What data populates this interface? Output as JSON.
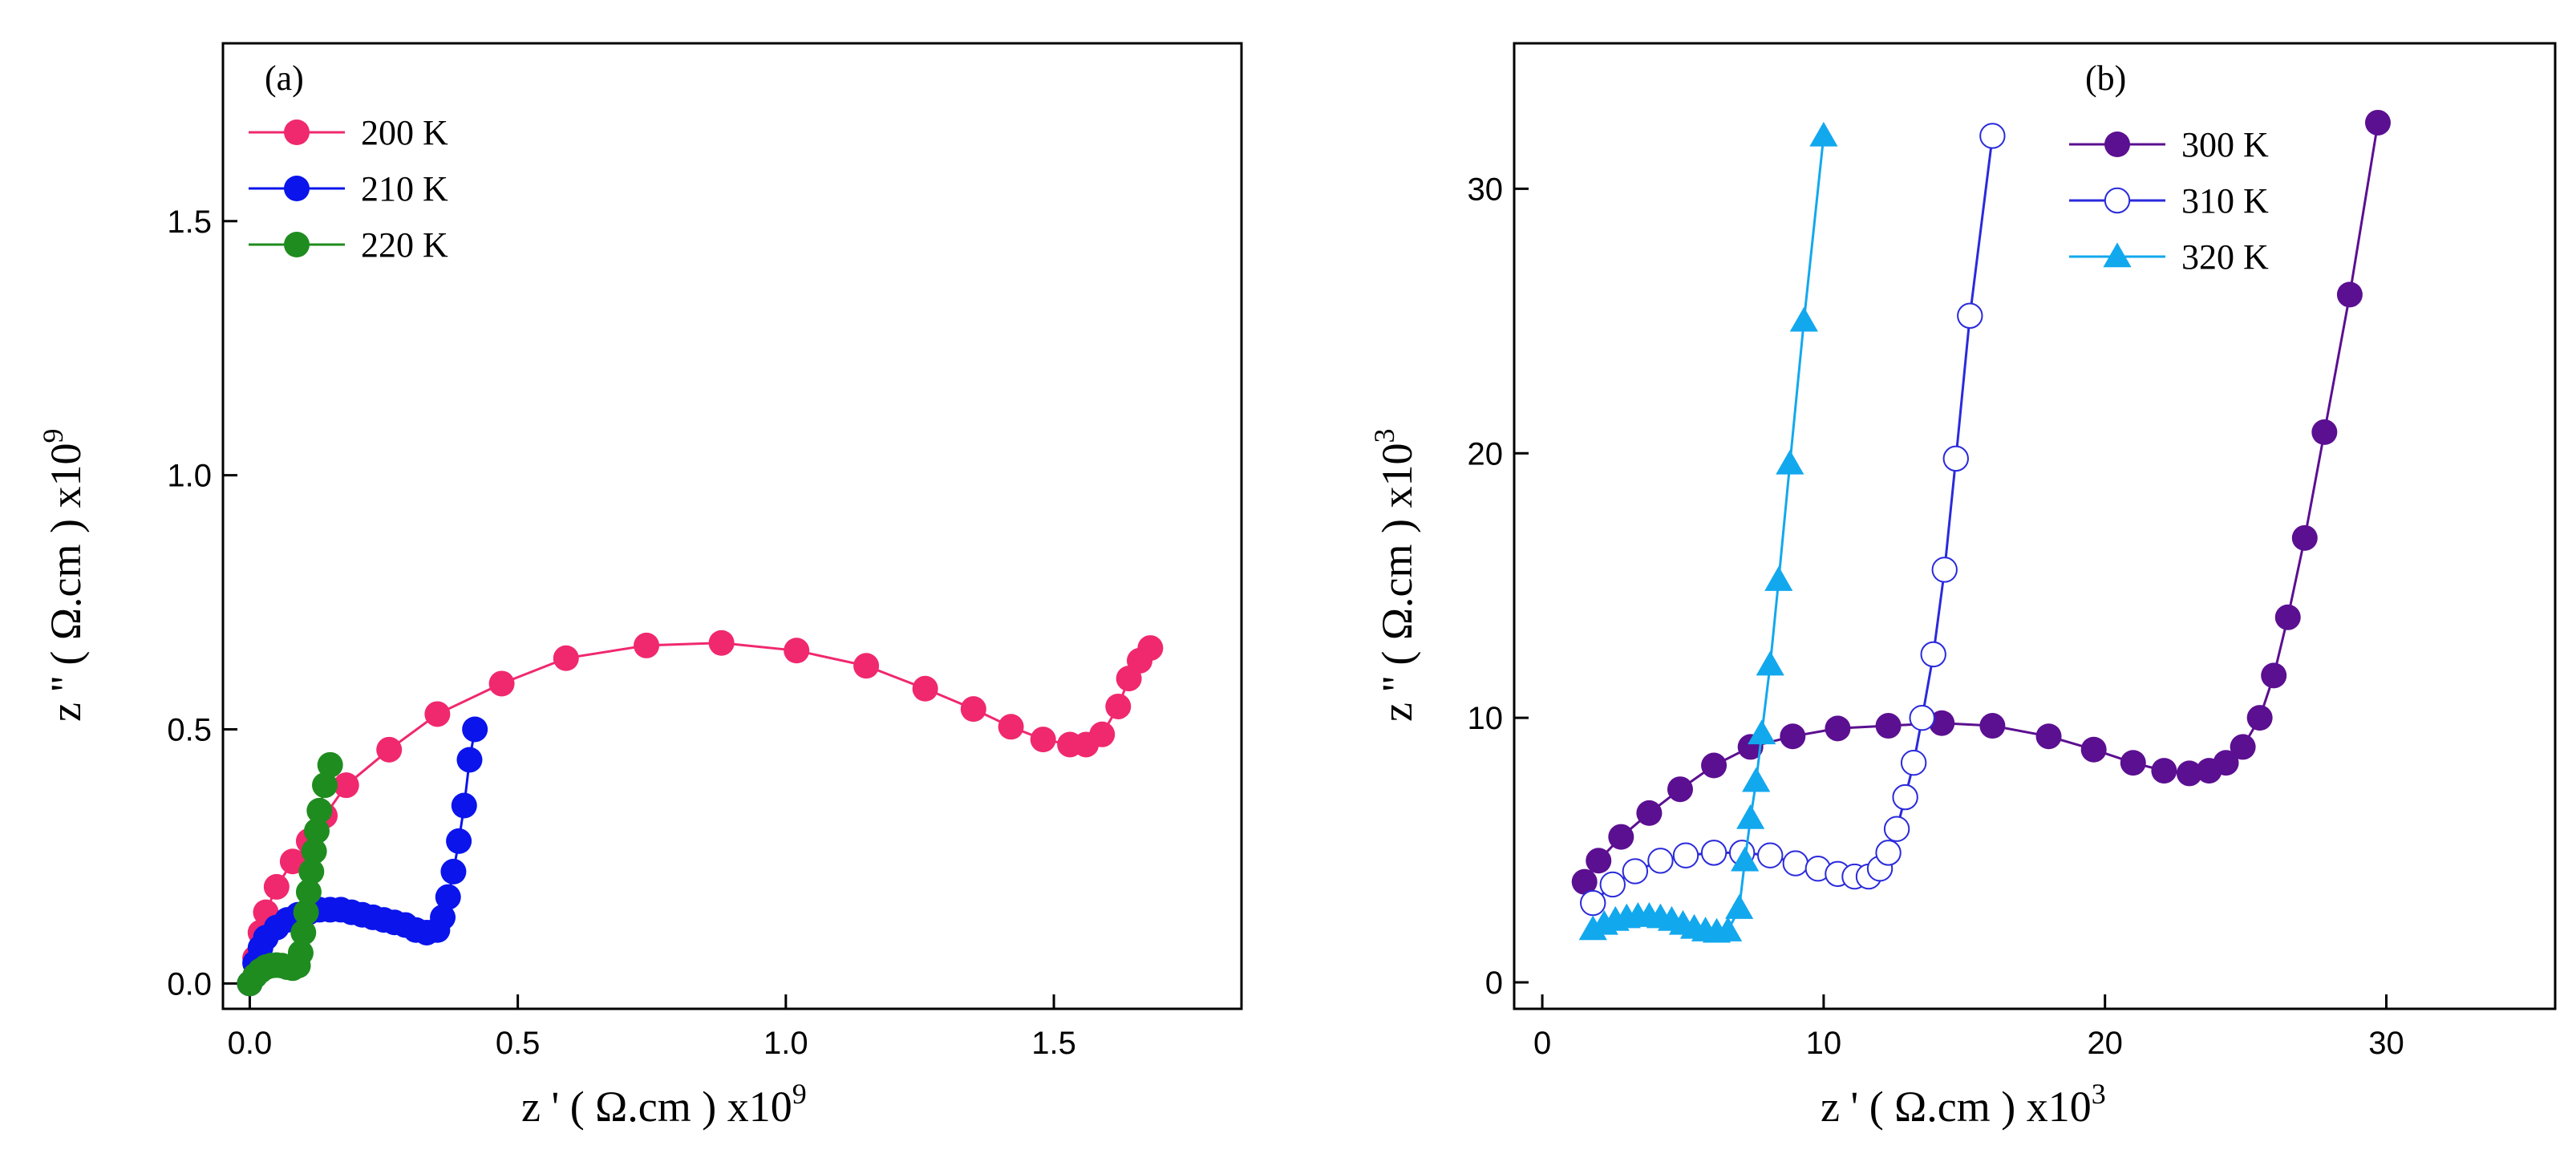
{
  "chart_data": [
    {
      "type": "scatter",
      "panel_label": "(a)",
      "xlabel_main": "z '  ( Ω.cm ) x10",
      "xlabel_exp": "9",
      "ylabel_main": "z ''  ( Ω.cm ) x10",
      "ylabel_exp": "9",
      "xlim": [
        -0.05,
        1.85
      ],
      "ylim": [
        -0.05,
        1.85
      ],
      "xticks": [
        0.0,
        0.5,
        1.0,
        1.5
      ],
      "xtick_labels": [
        "0.0",
        "0.5",
        "1.0",
        "1.5"
      ],
      "yticks": [
        0.0,
        0.5,
        1.0,
        1.5
      ],
      "ytick_labels": [
        "0.0",
        "0.5",
        "1.0",
        "1.5"
      ],
      "legend_position": "top-left",
      "series": [
        {
          "name": "200 K",
          "color": "#F0286E",
          "marker": "filled-circle",
          "x": [
            0.0,
            0.01,
            0.02,
            0.03,
            0.05,
            0.08,
            0.11,
            0.14,
            0.18,
            0.26,
            0.35,
            0.47,
            0.59,
            0.74,
            0.88,
            1.02,
            1.15,
            1.26,
            1.35,
            1.42,
            1.48,
            1.53,
            1.56,
            1.59,
            1.62,
            1.64,
            1.66,
            1.68
          ],
          "y": [
            0.0,
            0.05,
            0.1,
            0.14,
            0.19,
            0.24,
            0.28,
            0.33,
            0.39,
            0.46,
            0.53,
            0.59,
            0.64,
            0.665,
            0.67,
            0.655,
            0.625,
            0.58,
            0.54,
            0.505,
            0.48,
            0.47,
            0.47,
            0.49,
            0.545,
            0.6,
            0.635,
            0.66
          ]
        },
        {
          "name": "210 K",
          "color": "#0A14EB",
          "marker": "filled-circle",
          "x": [
            0.0,
            0.01,
            0.02,
            0.03,
            0.05,
            0.07,
            0.09,
            0.11,
            0.13,
            0.15,
            0.17,
            0.19,
            0.21,
            0.23,
            0.25,
            0.27,
            0.29,
            0.31,
            0.33,
            0.35,
            0.36,
            0.37,
            0.38,
            0.39,
            0.4,
            0.41,
            0.42
          ],
          "y": [
            0.0,
            0.04,
            0.07,
            0.09,
            0.11,
            0.125,
            0.135,
            0.14,
            0.145,
            0.145,
            0.145,
            0.14,
            0.135,
            0.13,
            0.125,
            0.12,
            0.115,
            0.105,
            0.1,
            0.105,
            0.13,
            0.17,
            0.22,
            0.28,
            0.35,
            0.44,
            0.5
          ]
        },
        {
          "name": "220 K",
          "color": "#1F8C1F",
          "marker": "filled-circle",
          "x": [
            0.0,
            0.01,
            0.02,
            0.03,
            0.04,
            0.05,
            0.06,
            0.07,
            0.08,
            0.09,
            0.095,
            0.1,
            0.105,
            0.11,
            0.115,
            0.12,
            0.125,
            0.13,
            0.14,
            0.15
          ],
          "y": [
            0.0,
            0.015,
            0.025,
            0.032,
            0.035,
            0.036,
            0.035,
            0.032,
            0.03,
            0.035,
            0.06,
            0.1,
            0.14,
            0.18,
            0.22,
            0.26,
            0.3,
            0.34,
            0.39,
            0.43
          ]
        }
      ]
    },
    {
      "type": "scatter",
      "panel_label": "(b)",
      "xlabel_main": "z '  ( Ω.cm ) x10",
      "xlabel_exp": "3",
      "ylabel_main": "z ''  ( Ω.cm ) x10",
      "ylabel_exp": "3",
      "xlim": [
        -1,
        36
      ],
      "ylim": [
        -1,
        35.5
      ],
      "xticks": [
        0,
        10,
        20,
        30
      ],
      "xtick_labels": [
        "0",
        "10",
        "20",
        "30"
      ],
      "yticks": [
        0,
        10,
        20,
        30
      ],
      "ytick_labels": [
        "0",
        "10",
        "20",
        "30"
      ],
      "legend_position": "top-right",
      "series": [
        {
          "name": "300 K",
          "color": "#5B0F91",
          "marker": "filled-circle",
          "x": [
            1.5,
            2.0,
            2.8,
            3.8,
            4.9,
            6.1,
            7.4,
            8.9,
            10.5,
            12.3,
            14.2,
            16.0,
            18.0,
            19.6,
            21.0,
            22.1,
            23.0,
            23.7,
            24.3,
            24.9,
            25.5,
            26.0,
            26.5,
            27.1,
            27.8,
            28.7,
            29.7
          ],
          "y": [
            3.8,
            4.6,
            5.5,
            6.4,
            7.3,
            8.2,
            8.9,
            9.3,
            9.6,
            9.7,
            9.8,
            9.7,
            9.3,
            8.8,
            8.3,
            8.0,
            7.9,
            8.0,
            8.3,
            8.9,
            10.0,
            11.6,
            13.8,
            16.8,
            20.8,
            26.0,
            32.5
          ]
        },
        {
          "name": "310 K",
          "color": "#2A2ADC",
          "marker": "open-circle",
          "x": [
            1.8,
            2.5,
            3.3,
            4.2,
            5.1,
            6.1,
            7.1,
            8.1,
            9.0,
            9.8,
            10.5,
            11.1,
            11.6,
            12.0,
            12.3,
            12.6,
            12.9,
            13.2,
            13.5,
            13.9,
            14.3,
            14.7,
            15.2,
            16.0
          ],
          "y": [
            3.0,
            3.7,
            4.2,
            4.6,
            4.8,
            4.9,
            4.9,
            4.8,
            4.5,
            4.3,
            4.1,
            4.0,
            4.0,
            4.3,
            4.9,
            5.8,
            7.0,
            8.3,
            10.0,
            12.4,
            15.6,
            19.8,
            25.2,
            32.0
          ]
        },
        {
          "name": "320 K",
          "color": "#12A8EE",
          "marker": "filled-triangle",
          "x": [
            1.8,
            2.2,
            2.6,
            3.0,
            3.4,
            3.8,
            4.2,
            4.6,
            5.0,
            5.4,
            5.8,
            6.2,
            6.6,
            7.0,
            7.2,
            7.4,
            7.6,
            7.8,
            8.1,
            8.4,
            8.8,
            9.3,
            10.0
          ],
          "y": [
            2.0,
            2.2,
            2.35,
            2.45,
            2.5,
            2.5,
            2.45,
            2.35,
            2.2,
            2.05,
            1.95,
            1.9,
            1.95,
            2.8,
            4.6,
            6.2,
            7.6,
            9.4,
            12.0,
            15.2,
            19.6,
            25.0,
            32.0
          ]
        }
      ]
    }
  ]
}
